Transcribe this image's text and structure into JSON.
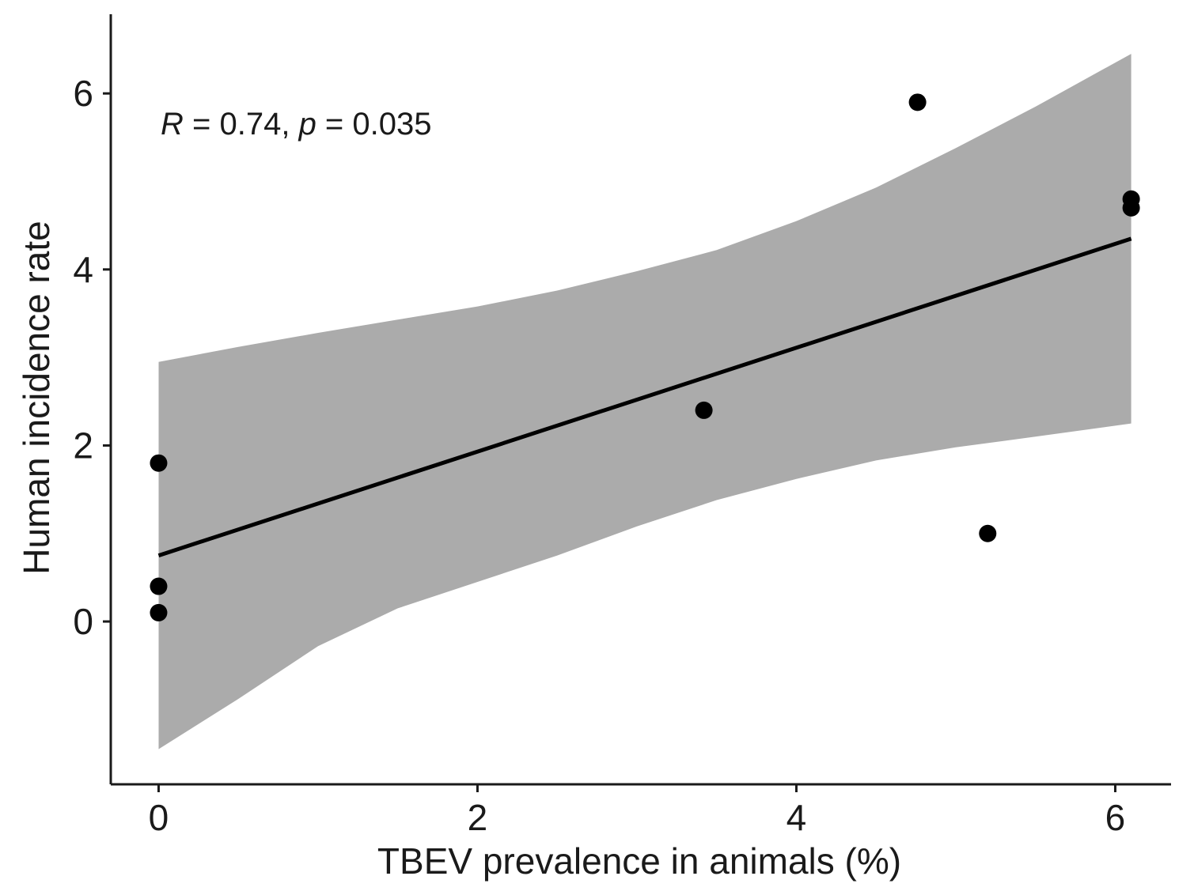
{
  "chart_data": {
    "type": "scatter",
    "xlabel": "TBEV prevalence in animals (%)",
    "ylabel": "Human incidence rate",
    "xlim": [
      -0.3,
      6.35
    ],
    "ylim": [
      -1.85,
      6.9
    ],
    "x_ticks": [
      0,
      2,
      4,
      6
    ],
    "y_ticks": [
      0,
      2,
      4,
      6
    ],
    "x_tick_labels": [
      "0",
      "2",
      "4",
      "6"
    ],
    "y_tick_labels": [
      "0",
      "2",
      "4",
      "6"
    ],
    "grid": false,
    "annotation": {
      "r_symbol": "R",
      "r_text": " = 0.74, ",
      "p_symbol": "p",
      "p_text": " = 0.035"
    },
    "points": [
      {
        "x": 0.0,
        "y": 1.8
      },
      {
        "x": 0.0,
        "y": 0.4
      },
      {
        "x": 0.0,
        "y": 0.1
      },
      {
        "x": 3.42,
        "y": 2.4
      },
      {
        "x": 4.76,
        "y": 5.9
      },
      {
        "x": 5.2,
        "y": 1.0
      },
      {
        "x": 6.1,
        "y": 4.8
      },
      {
        "x": 6.1,
        "y": 4.7
      }
    ],
    "regression": {
      "x": [
        0.0,
        6.1
      ],
      "y": [
        0.75,
        4.35
      ]
    },
    "confidence_band": {
      "x": [
        0.0,
        0.5,
        1.0,
        1.5,
        2.0,
        2.5,
        3.0,
        3.5,
        4.0,
        4.5,
        5.0,
        5.5,
        6.1
      ],
      "upper": [
        2.95,
        3.12,
        3.28,
        3.43,
        3.58,
        3.76,
        3.98,
        4.22,
        4.55,
        4.93,
        5.38,
        5.85,
        6.45
      ],
      "lower": [
        -1.45,
        -0.88,
        -0.28,
        0.15,
        0.45,
        0.75,
        1.08,
        1.38,
        1.62,
        1.83,
        1.98,
        2.1,
        2.25
      ]
    },
    "colors": {
      "band": "#ababab",
      "line": "#000000",
      "point": "#000000",
      "axis": "#1a1a1a"
    }
  }
}
